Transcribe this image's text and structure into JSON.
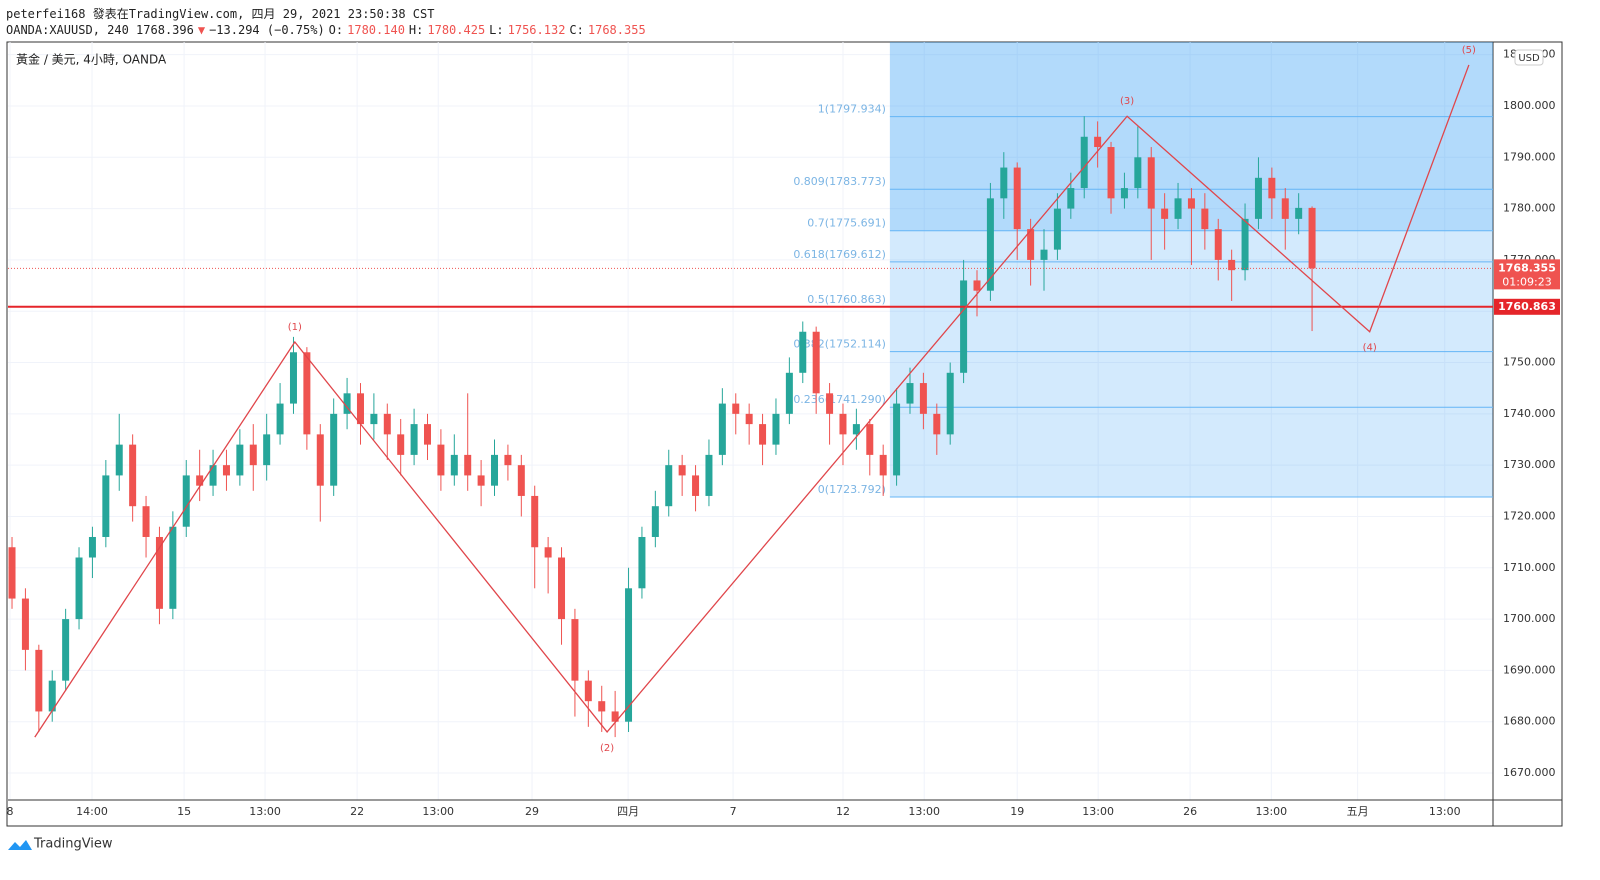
{
  "header": {
    "byline": "peterfei168 發表在TradingView.com, 四月 29, 2021 23:50:38 CST",
    "quote": [
      {
        "text": "OANDA:XAUUSD, 240 1768.396"
      },
      {
        "text": "▼",
        "color": "#ef5350"
      },
      {
        "text": "−13.294 (−0.75%)"
      },
      {
        "text": "O:"
      },
      {
        "text": "1780.140",
        "color": "#ef5350"
      },
      {
        "text": "H:"
      },
      {
        "text": "1780.425",
        "color": "#ef5350"
      },
      {
        "text": "L:"
      },
      {
        "text": "1756.132",
        "color": "#ef5350"
      },
      {
        "text": "C:"
      },
      {
        "text": "1768.355",
        "color": "#ef5350"
      }
    ]
  },
  "footer": {
    "brand": "TradingView"
  },
  "chart_data": {
    "type": "candlestick",
    "title": "黃金 / 美元, 4小時, OANDA",
    "currency": "USD",
    "up_color": "#26a69a",
    "down_color": "#ef5350",
    "grid": true,
    "ylim": [
      1664.74,
      1812.47
    ],
    "yticks": [
      {
        "value": 1670,
        "label": "1670.000"
      },
      {
        "value": 1680,
        "label": "1680.000"
      },
      {
        "value": 1690,
        "label": "1690.000"
      },
      {
        "value": 1700,
        "label": "1700.000"
      },
      {
        "value": 1710,
        "label": "1710.000"
      },
      {
        "value": 1720,
        "label": "1720.000"
      },
      {
        "value": 1730,
        "label": "1730.000"
      },
      {
        "value": 1740,
        "label": "1740.000"
      },
      {
        "value": 1750,
        "label": "1750.000"
      },
      {
        "value": 1760,
        "label": "1760.000"
      },
      {
        "value": 1770,
        "label": "1770.000"
      },
      {
        "value": 1780,
        "label": "1780.000"
      },
      {
        "value": 1790,
        "label": "1790.000"
      },
      {
        "value": 1800,
        "label": "1800.000"
      },
      {
        "value": 1810,
        "label": "1810.000"
      }
    ],
    "xlim": [
      -0.3,
      110.5
    ],
    "xticks": [
      {
        "value": -0.15,
        "label": "8"
      },
      {
        "value": 5.97,
        "label": "14:00"
      },
      {
        "value": 12.84,
        "label": "15"
      },
      {
        "value": 18.88,
        "label": "13:00"
      },
      {
        "value": 25.75,
        "label": "22"
      },
      {
        "value": 31.8,
        "label": "13:00"
      },
      {
        "value": 38.8,
        "label": "29"
      },
      {
        "value": 45.97,
        "label": "四月"
      },
      {
        "value": 53.8,
        "label": "7"
      },
      {
        "value": 62.0,
        "label": "12"
      },
      {
        "value": 68.06,
        "label": "13:00"
      },
      {
        "value": 75.0,
        "label": "19"
      },
      {
        "value": 81.04,
        "label": "13:00"
      },
      {
        "value": 87.9,
        "label": "26"
      },
      {
        "value": 93.96,
        "label": "13:00"
      },
      {
        "value": 100.4,
        "label": "五月"
      },
      {
        "value": 106.9,
        "label": "13:00"
      }
    ],
    "ohlc": [
      [
        1714,
        1716,
        1702,
        1704
      ],
      [
        1704,
        1706,
        1690,
        1694
      ],
      [
        1694,
        1695,
        1678,
        1682
      ],
      [
        1682,
        1690,
        1680,
        1688
      ],
      [
        1688,
        1702,
        1686,
        1700
      ],
      [
        1700,
        1714,
        1698,
        1712
      ],
      [
        1712,
        1718,
        1708,
        1716
      ],
      [
        1716,
        1731,
        1714,
        1728
      ],
      [
        1728,
        1740,
        1725,
        1734
      ],
      [
        1734,
        1736,
        1719,
        1722
      ],
      [
        1722,
        1724,
        1712,
        1716
      ],
      [
        1716,
        1718,
        1699,
        1702
      ],
      [
        1702,
        1721,
        1700,
        1718
      ],
      [
        1718,
        1731,
        1716,
        1728
      ],
      [
        1728,
        1733,
        1723,
        1726
      ],
      [
        1726,
        1733,
        1724,
        1730
      ],
      [
        1730,
        1733,
        1725,
        1728
      ],
      [
        1728,
        1737,
        1726,
        1734
      ],
      [
        1734,
        1738,
        1725,
        1730
      ],
      [
        1730,
        1740,
        1727,
        1736
      ],
      [
        1736,
        1746,
        1734,
        1742
      ],
      [
        1742,
        1755,
        1740,
        1752
      ],
      [
        1752,
        1753,
        1733,
        1736
      ],
      [
        1736,
        1738,
        1719,
        1726
      ],
      [
        1726,
        1743,
        1724,
        1740
      ],
      [
        1740,
        1747,
        1737,
        1744
      ],
      [
        1744,
        1746,
        1734,
        1738
      ],
      [
        1738,
        1744,
        1735,
        1740
      ],
      [
        1740,
        1742,
        1731,
        1736
      ],
      [
        1736,
        1739,
        1728,
        1732
      ],
      [
        1732,
        1741,
        1730,
        1738
      ],
      [
        1738,
        1740,
        1731,
        1734
      ],
      [
        1734,
        1737,
        1725,
        1728
      ],
      [
        1728,
        1736,
        1726,
        1732
      ],
      [
        1732,
        1744,
        1725,
        1728
      ],
      [
        1728,
        1731,
        1722,
        1726
      ],
      [
        1726,
        1735,
        1724,
        1732
      ],
      [
        1732,
        1734,
        1727,
        1730
      ],
      [
        1730,
        1732,
        1720,
        1724
      ],
      [
        1724,
        1726,
        1706,
        1714
      ],
      [
        1714,
        1716,
        1705,
        1712
      ],
      [
        1712,
        1714,
        1695,
        1700
      ],
      [
        1700,
        1702,
        1681,
        1688
      ],
      [
        1688,
        1690,
        1679,
        1684
      ],
      [
        1684,
        1687,
        1678,
        1682
      ],
      [
        1682,
        1686,
        1677,
        1680
      ],
      [
        1680,
        1710,
        1678,
        1706
      ],
      [
        1706,
        1718,
        1704,
        1716
      ],
      [
        1716,
        1725,
        1714,
        1722
      ],
      [
        1722,
        1733,
        1720,
        1730
      ],
      [
        1730,
        1732,
        1724,
        1728
      ],
      [
        1728,
        1730,
        1721,
        1724
      ],
      [
        1724,
        1735,
        1722,
        1732
      ],
      [
        1732,
        1745,
        1730,
        1742
      ],
      [
        1742,
        1744,
        1736,
        1740
      ],
      [
        1740,
        1742,
        1734,
        1738
      ],
      [
        1738,
        1740,
        1730,
        1734
      ],
      [
        1734,
        1743,
        1732,
        1740
      ],
      [
        1740,
        1751,
        1738,
        1748
      ],
      [
        1748,
        1758,
        1746,
        1756
      ],
      [
        1756,
        1757,
        1740,
        1744
      ],
      [
        1744,
        1746,
        1734,
        1740
      ],
      [
        1740,
        1742,
        1730,
        1736
      ],
      [
        1736,
        1741,
        1733,
        1738
      ],
      [
        1738,
        1739,
        1728,
        1732
      ],
      [
        1732,
        1734,
        1724,
        1728
      ],
      [
        1728,
        1745,
        1726,
        1742
      ],
      [
        1742,
        1749,
        1740,
        1746
      ],
      [
        1746,
        1748,
        1737,
        1740
      ],
      [
        1740,
        1742,
        1732,
        1736
      ],
      [
        1736,
        1750,
        1734,
        1748
      ],
      [
        1748,
        1770,
        1746,
        1766
      ],
      [
        1766,
        1768,
        1759,
        1764
      ],
      [
        1764,
        1785,
        1762,
        1782
      ],
      [
        1782,
        1791,
        1778,
        1788
      ],
      [
        1788,
        1789,
        1770,
        1776
      ],
      [
        1776,
        1778,
        1765,
        1770
      ],
      [
        1770,
        1776,
        1764,
        1772
      ],
      [
        1772,
        1783,
        1770,
        1780
      ],
      [
        1780,
        1787,
        1778,
        1784
      ],
      [
        1784,
        1798,
        1782,
        1794
      ],
      [
        1794,
        1797,
        1788,
        1792
      ],
      [
        1792,
        1793,
        1779,
        1782
      ],
      [
        1782,
        1787,
        1780,
        1784
      ],
      [
        1784,
        1796,
        1782,
        1790
      ],
      [
        1790,
        1792,
        1770,
        1780
      ],
      [
        1780,
        1783,
        1772,
        1778
      ],
      [
        1778,
        1785,
        1776,
        1782
      ],
      [
        1782,
        1784,
        1769,
        1780
      ],
      [
        1780,
        1783,
        1772,
        1776
      ],
      [
        1776,
        1778,
        1766,
        1770
      ],
      [
        1770,
        1772,
        1762,
        1768
      ],
      [
        1768,
        1781,
        1766,
        1778
      ],
      [
        1778,
        1790,
        1776,
        1786
      ],
      [
        1786,
        1788,
        1778,
        1782
      ],
      [
        1782,
        1784,
        1772,
        1778
      ],
      [
        1778,
        1783,
        1775,
        1780.14
      ],
      [
        1780.14,
        1780.425,
        1756.132,
        1768.355
      ]
    ],
    "last_price": {
      "value": 1768.355,
      "label": "1768.355"
    },
    "countdown": "01:09:23",
    "hline": {
      "value": 1760.863,
      "label": "1760.863",
      "color": "#e5252a"
    },
    "fib": {
      "levels": [
        {
          "value": 1797.934,
          "label": "1(1797.934)"
        },
        {
          "value": 1783.773,
          "label": "0.809(1783.773)"
        },
        {
          "value": 1775.691,
          "label": "0.7(1775.691)"
        },
        {
          "value": 1769.612,
          "label": "0.618(1769.612)"
        },
        {
          "value": 1760.863,
          "label": "0.5(1760.863)"
        },
        {
          "value": 1752.114,
          "label": "0.382(1752.114)"
        },
        {
          "value": 1741.29,
          "label": "0.236(1741.290)"
        },
        {
          "value": 1723.792,
          "label": "0(1723.792)"
        }
      ]
    },
    "waves": {
      "x": [
        1.7,
        21.1,
        44.4,
        83.2,
        101.3,
        108.7
      ],
      "y": [
        1677,
        1754,
        1678,
        1798,
        1756,
        1808
      ],
      "labels": [
        null,
        "(1)",
        "(2)",
        "(3)",
        "(4)",
        "(5)"
      ],
      "color": "#e0464b"
    }
  }
}
